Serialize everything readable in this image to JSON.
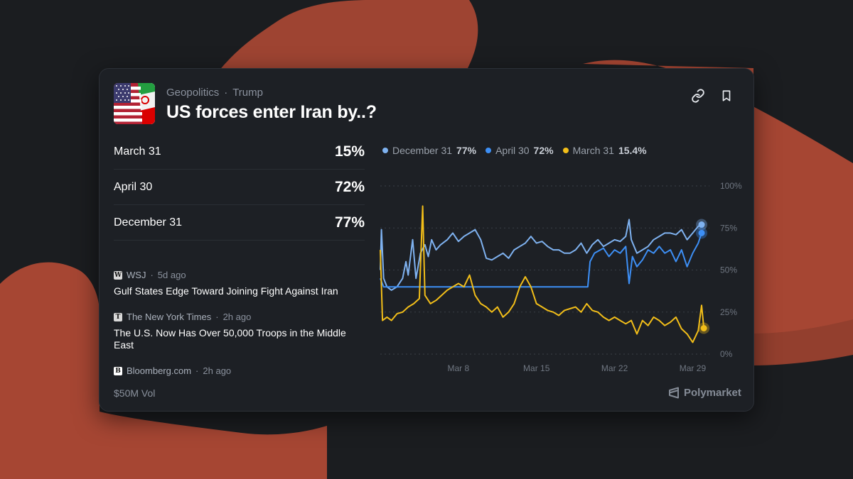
{
  "header": {
    "category": "Geopolitics",
    "tag": "Trump",
    "title": "US forces enter Iran by..?"
  },
  "outcomes": [
    {
      "name": "March 31",
      "pct": "15%"
    },
    {
      "name": "April 30",
      "pct": "72%"
    },
    {
      "name": "December 31",
      "pct": "77%"
    }
  ],
  "news": [
    {
      "source": "WSJ",
      "logo": "W",
      "age": "5d ago",
      "headline": "Gulf States Edge Toward Joining Fight Against Iran"
    },
    {
      "source": "The New York Times",
      "logo": "T",
      "age": "2h ago",
      "headline": "The U.S. Now Has Over 50,000 Troops in the Middle East"
    },
    {
      "source": "Bloomberg.com",
      "logo": "B",
      "age": "2h ago",
      "headline": ""
    }
  ],
  "footer": {
    "volume": "$50M Vol",
    "brand": "Polymarket"
  },
  "legend": [
    {
      "name": "December 31",
      "value": "77%",
      "color": "#7fb2f0"
    },
    {
      "name": "April 30",
      "value": "72%",
      "color": "#3d8ff5"
    },
    {
      "name": "March 31",
      "value": "15.4%",
      "color": "#f2be19"
    }
  ],
  "icons": {
    "share": "link-icon",
    "save": "bookmark-icon",
    "brand": "polymarket-logo-icon"
  },
  "chart_data": {
    "type": "line",
    "x_ticks": [
      "Mar 8",
      "Mar 15",
      "Mar 22",
      "Mar 29"
    ],
    "y_ticks": [
      "0%",
      "25%",
      "50%",
      "75%",
      "100%"
    ],
    "ylim": [
      0,
      100
    ],
    "xlim": [
      1,
      30.5
    ],
    "grid": true,
    "legend_position": "top-left",
    "series": [
      {
        "name": "December 31",
        "color": "#7fb2f0",
        "points": [
          [
            1,
            50
          ],
          [
            1.1,
            74
          ],
          [
            1.3,
            45
          ],
          [
            1.6,
            40
          ],
          [
            2,
            38
          ],
          [
            2.5,
            40
          ],
          [
            3,
            45
          ],
          [
            3.3,
            55
          ],
          [
            3.5,
            47
          ],
          [
            3.9,
            68
          ],
          [
            4.2,
            45
          ],
          [
            4.6,
            60
          ],
          [
            5,
            65
          ],
          [
            5.3,
            58
          ],
          [
            5.6,
            68
          ],
          [
            6,
            62
          ],
          [
            6.4,
            65
          ],
          [
            7,
            68
          ],
          [
            7.5,
            72
          ],
          [
            8,
            67
          ],
          [
            8.5,
            70
          ],
          [
            9,
            72
          ],
          [
            9.5,
            74
          ],
          [
            10,
            68
          ],
          [
            10.5,
            57
          ],
          [
            11,
            56
          ],
          [
            11.5,
            58
          ],
          [
            12,
            60
          ],
          [
            12.5,
            57
          ],
          [
            13,
            62
          ],
          [
            13.5,
            64
          ],
          [
            14,
            66
          ],
          [
            14.5,
            70
          ],
          [
            15,
            66
          ],
          [
            15.5,
            67
          ],
          [
            16,
            64
          ],
          [
            16.5,
            62
          ],
          [
            17,
            62
          ],
          [
            17.5,
            60
          ],
          [
            18,
            60
          ],
          [
            18.5,
            62
          ],
          [
            19,
            66
          ],
          [
            19.5,
            60
          ],
          [
            20,
            65
          ],
          [
            20.5,
            68
          ],
          [
            21,
            64
          ],
          [
            21.5,
            66
          ],
          [
            22,
            68
          ],
          [
            22.5,
            67
          ],
          [
            23,
            70
          ],
          [
            23.3,
            80
          ],
          [
            23.5,
            68
          ],
          [
            24,
            60
          ],
          [
            24.5,
            62
          ],
          [
            25,
            64
          ],
          [
            25.5,
            68
          ],
          [
            26,
            70
          ],
          [
            26.5,
            72
          ],
          [
            27,
            72
          ],
          [
            27.5,
            71
          ],
          [
            28,
            74
          ],
          [
            28.5,
            68
          ],
          [
            29,
            72
          ],
          [
            29.5,
            76
          ],
          [
            29.8,
            77
          ]
        ]
      },
      {
        "name": "April 30",
        "color": "#3d8ff5",
        "points": [
          [
            1,
            45
          ],
          [
            1.3,
            40
          ],
          [
            3,
            40
          ],
          [
            5,
            40
          ],
          [
            7,
            40
          ],
          [
            9,
            40
          ],
          [
            11,
            40
          ],
          [
            13,
            40
          ],
          [
            15,
            40
          ],
          [
            17,
            40
          ],
          [
            19,
            40
          ],
          [
            19.6,
            40
          ],
          [
            19.8,
            55
          ],
          [
            20.2,
            60
          ],
          [
            21,
            63
          ],
          [
            21.5,
            58
          ],
          [
            22,
            62
          ],
          [
            22.5,
            60
          ],
          [
            23,
            64
          ],
          [
            23.3,
            42
          ],
          [
            23.6,
            58
          ],
          [
            24,
            52
          ],
          [
            24.5,
            56
          ],
          [
            25,
            62
          ],
          [
            25.5,
            60
          ],
          [
            26,
            64
          ],
          [
            26.5,
            60
          ],
          [
            27,
            62
          ],
          [
            27.5,
            55
          ],
          [
            28,
            62
          ],
          [
            28.5,
            52
          ],
          [
            29,
            60
          ],
          [
            29.5,
            66
          ],
          [
            29.8,
            72
          ]
        ]
      },
      {
        "name": "March 31",
        "color": "#f2be19",
        "points": [
          [
            1,
            62
          ],
          [
            1.2,
            20
          ],
          [
            1.6,
            22
          ],
          [
            2,
            20
          ],
          [
            2.5,
            24
          ],
          [
            3,
            25
          ],
          [
            3.5,
            28
          ],
          [
            4,
            30
          ],
          [
            4.5,
            33
          ],
          [
            4.8,
            88
          ],
          [
            5,
            35
          ],
          [
            5.5,
            30
          ],
          [
            6,
            32
          ],
          [
            6.5,
            35
          ],
          [
            7,
            38
          ],
          [
            7.5,
            40
          ],
          [
            8,
            42
          ],
          [
            8.5,
            40
          ],
          [
            9,
            47
          ],
          [
            9.5,
            35
          ],
          [
            10,
            30
          ],
          [
            10.5,
            28
          ],
          [
            11,
            25
          ],
          [
            11.5,
            28
          ],
          [
            12,
            22
          ],
          [
            12.5,
            25
          ],
          [
            13,
            30
          ],
          [
            13.5,
            40
          ],
          [
            14,
            46
          ],
          [
            14.5,
            40
          ],
          [
            15,
            30
          ],
          [
            15.5,
            28
          ],
          [
            16,
            26
          ],
          [
            16.5,
            25
          ],
          [
            17,
            23
          ],
          [
            17.5,
            26
          ],
          [
            18,
            27
          ],
          [
            18.5,
            28
          ],
          [
            19,
            25
          ],
          [
            19.5,
            30
          ],
          [
            20,
            26
          ],
          [
            20.5,
            25
          ],
          [
            21,
            22
          ],
          [
            21.5,
            20
          ],
          [
            22,
            22
          ],
          [
            22.5,
            20
          ],
          [
            23,
            18
          ],
          [
            23.5,
            20
          ],
          [
            24,
            12
          ],
          [
            24.5,
            20
          ],
          [
            25,
            17
          ],
          [
            25.5,
            22
          ],
          [
            26,
            20
          ],
          [
            26.5,
            17
          ],
          [
            27,
            19
          ],
          [
            27.5,
            22
          ],
          [
            28,
            15
          ],
          [
            28.5,
            12
          ],
          [
            29,
            7
          ],
          [
            29.5,
            14
          ],
          [
            29.8,
            29
          ],
          [
            30,
            15.4
          ]
        ]
      }
    ]
  }
}
